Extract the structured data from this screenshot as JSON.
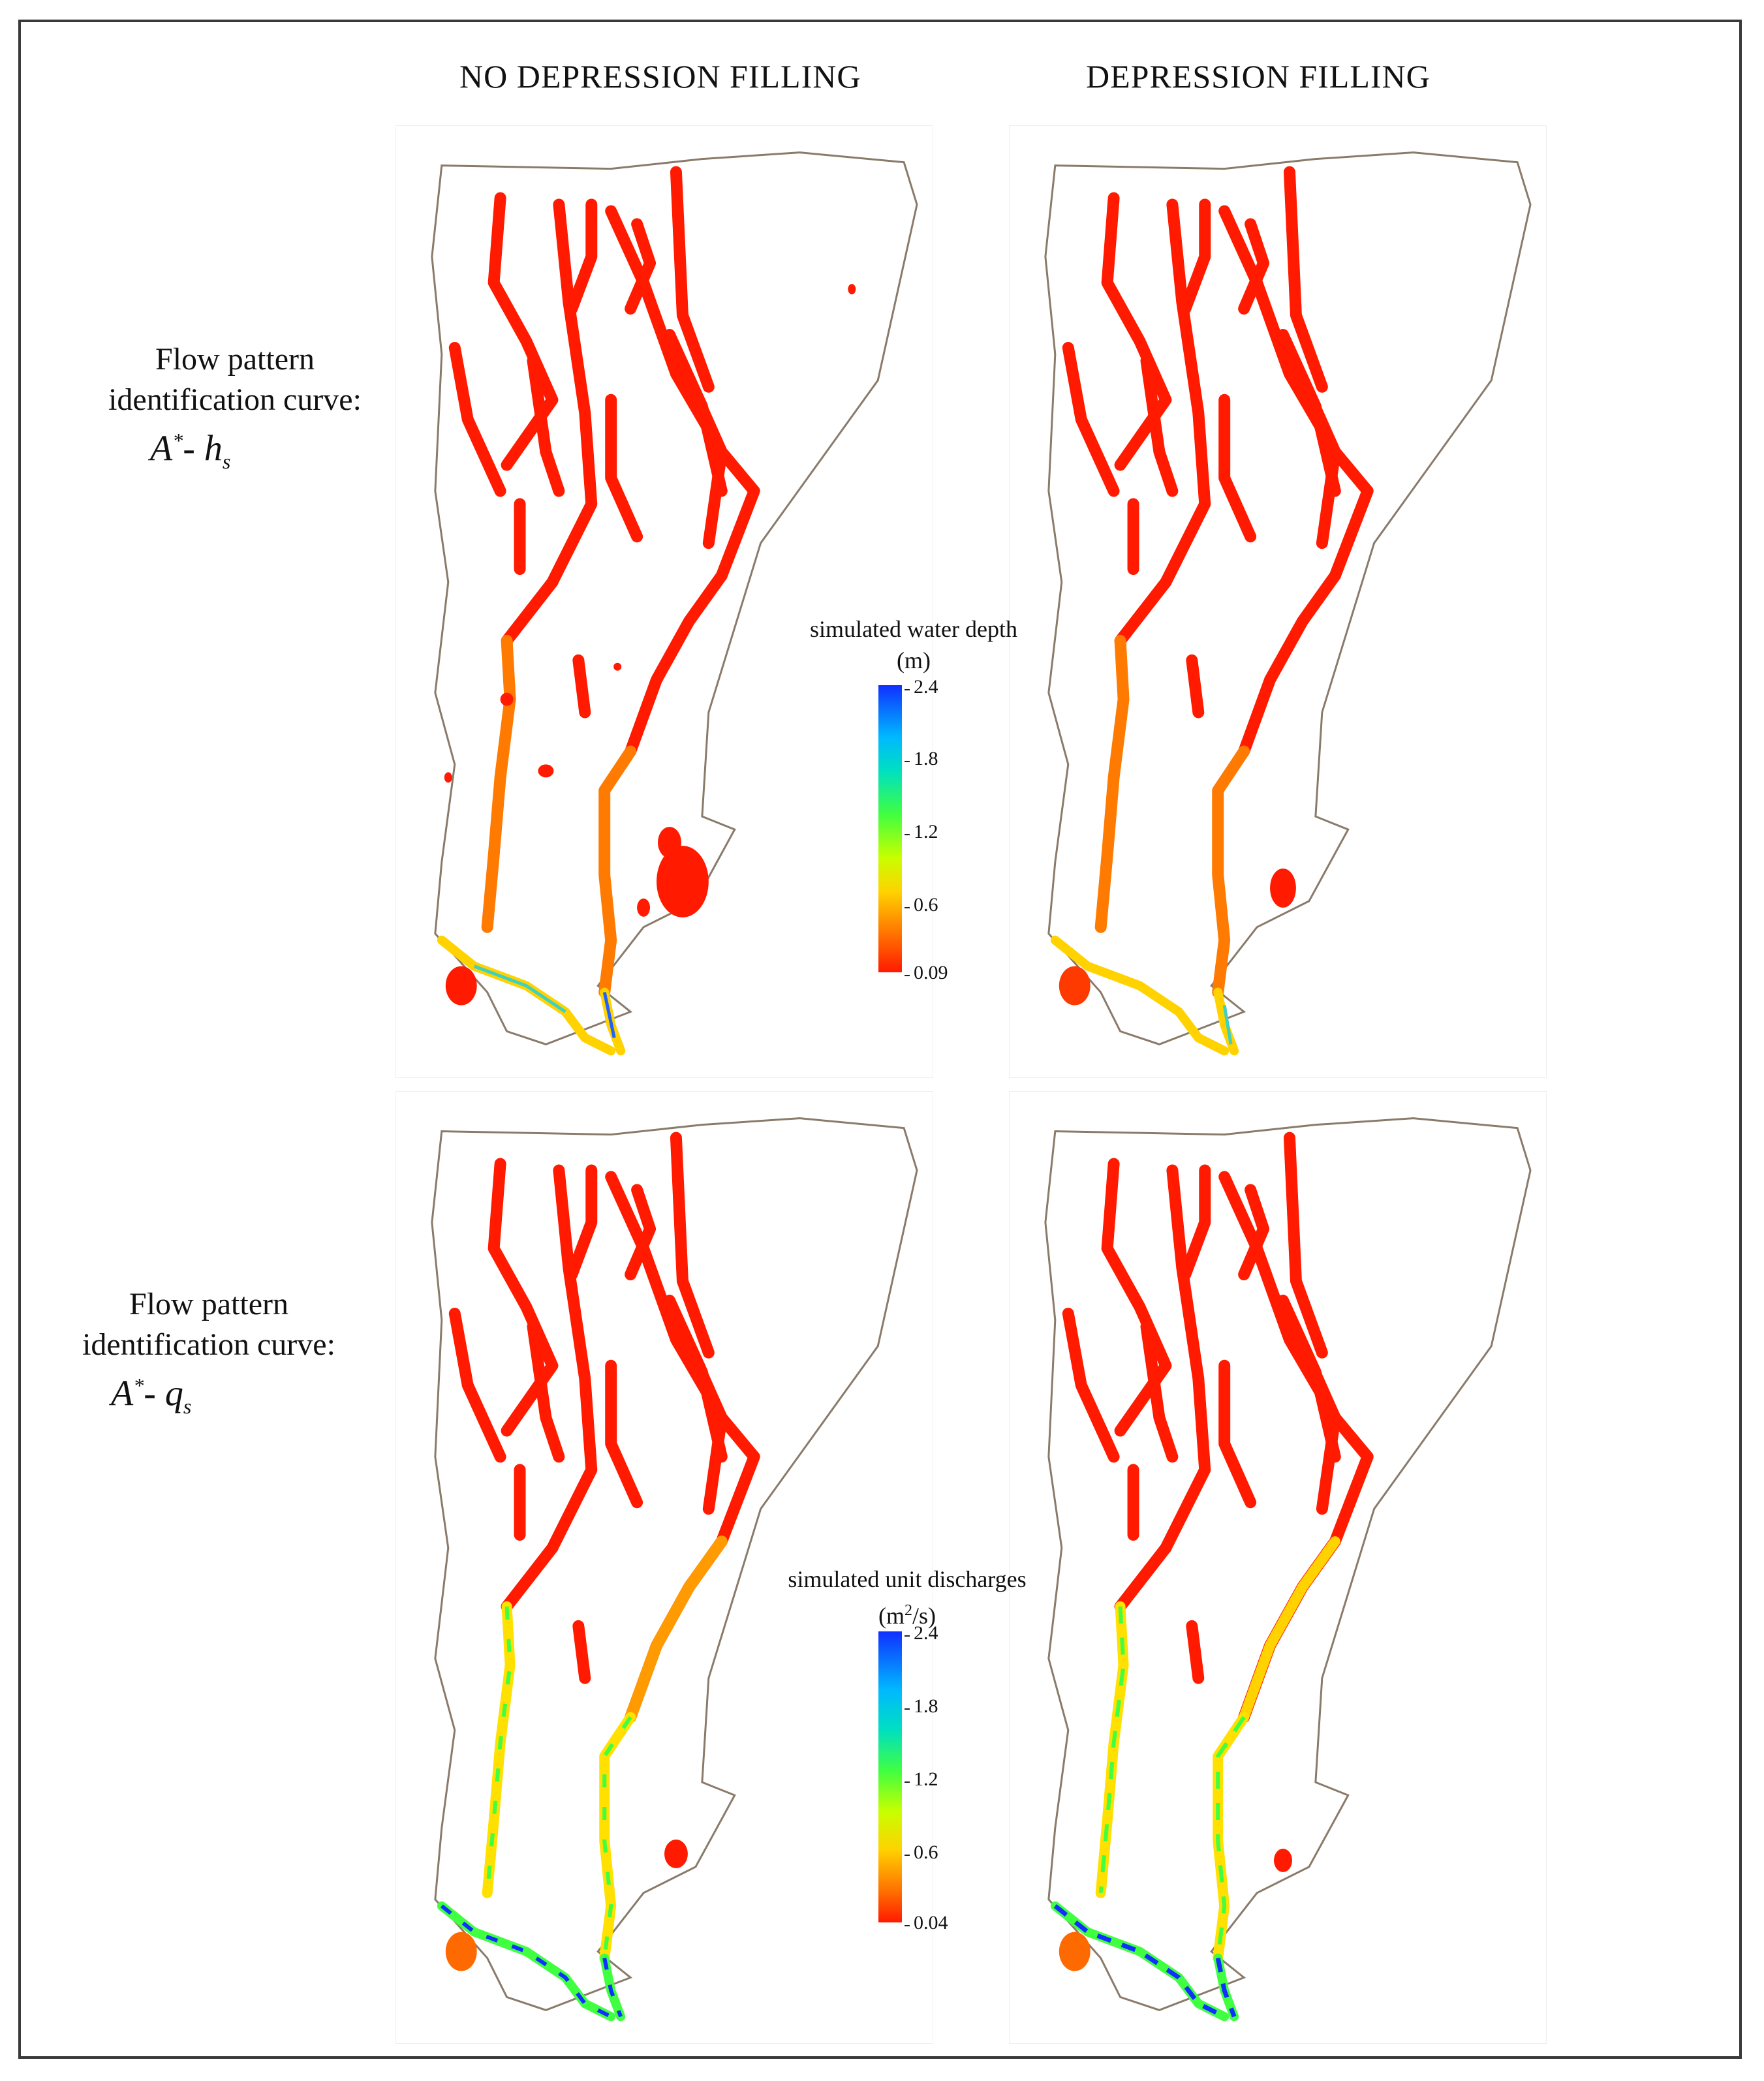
{
  "columns": {
    "left": "NO DEPRESSION FILLING",
    "right": "DEPRESSION FILLING"
  },
  "rows": {
    "depth": {
      "line1": "Flow pattern",
      "line2": "identification curve:",
      "formula_base": "A",
      "formula_sup": "*",
      "formula_rest": "- h",
      "formula_sub": "s"
    },
    "discharge": {
      "line1": "Flow pattern",
      "line2": "identification curve:",
      "formula_base": "A",
      "formula_sup": "*",
      "formula_rest": "- q",
      "formula_sub": "s"
    }
  },
  "legend_depth": {
    "title": "simulated water depth",
    "unit": "(m)",
    "ticks": [
      "2.4",
      "1.8",
      "1.2",
      "0.6",
      "0.09"
    ]
  },
  "legend_discharge": {
    "title": "simulated unit discharges",
    "unit_prefix": "(m",
    "unit_sup": "2",
    "unit_suffix": "/s)",
    "ticks": [
      "2.4",
      "1.8",
      "1.2",
      "0.6",
      "0.04"
    ]
  },
  "colors": {
    "boundary": "#8a7a6a",
    "boundary_south": "#8a5a8a",
    "low": "#ff1a00",
    "mid_low": "#ff7a00",
    "mid": "#ffe000",
    "mid_high": "#40ff40",
    "high": "#1030ff"
  }
}
